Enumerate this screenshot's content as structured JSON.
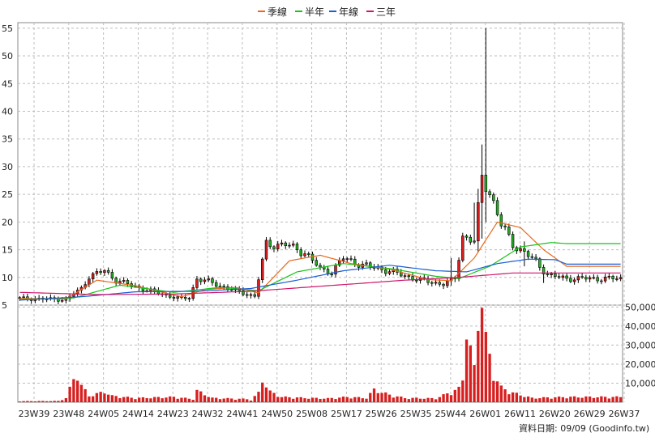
{
  "legend": [
    {
      "label": "季線",
      "color": "#e8691d"
    },
    {
      "label": "半年",
      "color": "#18c418"
    },
    {
      "label": "年線",
      "color": "#1b5fd2"
    },
    {
      "label": "三年",
      "color": "#d0156a"
    }
  ],
  "footer": {
    "date_text": "資料日期: 09/09  (Goodinfo.tw)"
  },
  "chart_data": {
    "type": "candlestick",
    "subtype": "weekly price with moving averages and volume bars",
    "x_ticks": [
      "23W39",
      "23W48",
      "24W05",
      "24W14",
      "24W23",
      "24W32",
      "24W41",
      "24W50",
      "25W08",
      "25W17",
      "25W26",
      "25W35",
      "25W44",
      "26W01",
      "26W11",
      "26W20",
      "26W29",
      "26W37"
    ],
    "price_axis": {
      "ticks": [
        5,
        10,
        15,
        20,
        25,
        30,
        35,
        40,
        45,
        50,
        55
      ],
      "ylim": [
        5,
        56
      ],
      "position": "left"
    },
    "volume_axis": {
      "ticks": [
        "10,000",
        "20,000",
        "30,000",
        "40,000",
        "50,000"
      ],
      "tick_values": [
        10000,
        20000,
        30000,
        40000,
        50000
      ],
      "ylim": [
        0,
        51000
      ],
      "position": "right"
    },
    "grid": true,
    "legend_position": "top",
    "up_color": "#d81f1f",
    "down_color": "#22b322",
    "week_count": 157,
    "close_anchors": [
      [
        0,
        6.2
      ],
      [
        12,
        6.0
      ],
      [
        16,
        8.0
      ],
      [
        18,
        10.2
      ],
      [
        22,
        11.2
      ],
      [
        25,
        9.5
      ],
      [
        30,
        8.3
      ],
      [
        37,
        7.0
      ],
      [
        42,
        6.1
      ],
      [
        44,
        6.4
      ],
      [
        46,
        9.8
      ],
      [
        50,
        9.0
      ],
      [
        54,
        8.0
      ],
      [
        59,
        7.0
      ],
      [
        61,
        6.6
      ],
      [
        64,
        16.0
      ],
      [
        69,
        15.9
      ],
      [
        74,
        14.5
      ],
      [
        78,
        11.5
      ],
      [
        81,
        11.0
      ],
      [
        84,
        13.5
      ],
      [
        89,
        12.2
      ],
      [
        94,
        11.5
      ],
      [
        99,
        10.5
      ],
      [
        104,
        9.5
      ],
      [
        110,
        8.8
      ],
      [
        113,
        9.8
      ],
      [
        115,
        17.5
      ],
      [
        118,
        16.5
      ],
      [
        120,
        28.0
      ],
      [
        122,
        25.5
      ],
      [
        125,
        19.5
      ],
      [
        128,
        16.0
      ],
      [
        131,
        14.5
      ],
      [
        134,
        12.8
      ],
      [
        137,
        10.5
      ],
      [
        140,
        10.0
      ],
      [
        142,
        9.8
      ]
    ],
    "spikes": [
      [
        112,
        13.5,
        8.5
      ],
      [
        118,
        23.5,
        16.0
      ],
      [
        121,
        55.0,
        20.0
      ],
      [
        120,
        34.0,
        17.0
      ],
      [
        131,
        16.5,
        12.0
      ],
      [
        136,
        11.0,
        9.0
      ],
      [
        119,
        26.0,
        14.5
      ]
    ],
    "volume_anchors": [
      [
        0,
        500
      ],
      [
        10,
        600
      ],
      [
        12,
        2000
      ],
      [
        14,
        11000
      ],
      [
        15,
        14500
      ],
      [
        16,
        8000
      ],
      [
        18,
        3000
      ],
      [
        22,
        5000
      ],
      [
        24,
        3000
      ],
      [
        30,
        2000
      ],
      [
        40,
        2500
      ],
      [
        45,
        1500
      ],
      [
        46,
        5500
      ],
      [
        50,
        2000
      ],
      [
        59,
        1500
      ],
      [
        60,
        1000
      ],
      [
        62,
        4500
      ],
      [
        63,
        11000
      ],
      [
        65,
        5000
      ],
      [
        68,
        2500
      ],
      [
        75,
        2000
      ],
      [
        80,
        1800
      ],
      [
        85,
        2500
      ],
      [
        90,
        2000
      ],
      [
        92,
        6000
      ],
      [
        96,
        3500
      ],
      [
        100,
        2000
      ],
      [
        108,
        1800
      ],
      [
        114,
        6500
      ],
      [
        115,
        11000
      ],
      [
        116,
        38000
      ],
      [
        117,
        25000
      ],
      [
        118,
        16000
      ],
      [
        119,
        40000
      ],
      [
        120,
        51000
      ],
      [
        121,
        30000
      ],
      [
        123,
        13500
      ],
      [
        125,
        7000
      ],
      [
        128,
        4500
      ],
      [
        133,
        2000
      ],
      [
        142,
        2500
      ]
    ],
    "moving_averages": [
      {
        "name": "季線",
        "values_at": [
          [
            0,
            6.2
          ],
          [
            12,
            6.1
          ],
          [
            20,
            9.5
          ],
          [
            30,
            8.5
          ],
          [
            42,
            6.5
          ],
          [
            48,
            7.8
          ],
          [
            56,
            8.2
          ],
          [
            62,
            7.2
          ],
          [
            70,
            13.0
          ],
          [
            78,
            14.0
          ],
          [
            86,
            12.5
          ],
          [
            96,
            11.5
          ],
          [
            106,
            9.6
          ],
          [
            112,
            9.4
          ],
          [
            118,
            13.5
          ],
          [
            124,
            20.0
          ],
          [
            130,
            19.0
          ],
          [
            136,
            15.0
          ],
          [
            142,
            12.0
          ]
        ]
      },
      {
        "name": "半年",
        "values_at": [
          [
            0,
            6.0
          ],
          [
            14,
            6.3
          ],
          [
            26,
            8.6
          ],
          [
            40,
            7.3
          ],
          [
            52,
            8.2
          ],
          [
            62,
            7.6
          ],
          [
            72,
            11.0
          ],
          [
            84,
            12.5
          ],
          [
            96,
            11.6
          ],
          [
            108,
            10.2
          ],
          [
            114,
            9.8
          ],
          [
            122,
            12.0
          ],
          [
            130,
            15.5
          ],
          [
            138,
            16.3
          ],
          [
            142,
            16.1
          ]
        ]
      },
      {
        "name": "年線",
        "values_at": [
          [
            0,
            5.9
          ],
          [
            16,
            6.5
          ],
          [
            30,
            7.4
          ],
          [
            46,
            7.5
          ],
          [
            60,
            8.0
          ],
          [
            72,
            9.5
          ],
          [
            84,
            11.2
          ],
          [
            96,
            12.2
          ],
          [
            108,
            11.2
          ],
          [
            116,
            11.0
          ],
          [
            124,
            12.5
          ],
          [
            132,
            13.3
          ],
          [
            139,
            13.2
          ],
          [
            142,
            12.4
          ]
        ]
      },
      {
        "name": "三年",
        "values_at": [
          [
            0,
            7.3
          ],
          [
            20,
            6.9
          ],
          [
            40,
            7.0
          ],
          [
            60,
            7.5
          ],
          [
            80,
            8.5
          ],
          [
            100,
            9.5
          ],
          [
            114,
            10.0
          ],
          [
            128,
            10.8
          ],
          [
            142,
            10.8
          ]
        ]
      }
    ]
  }
}
